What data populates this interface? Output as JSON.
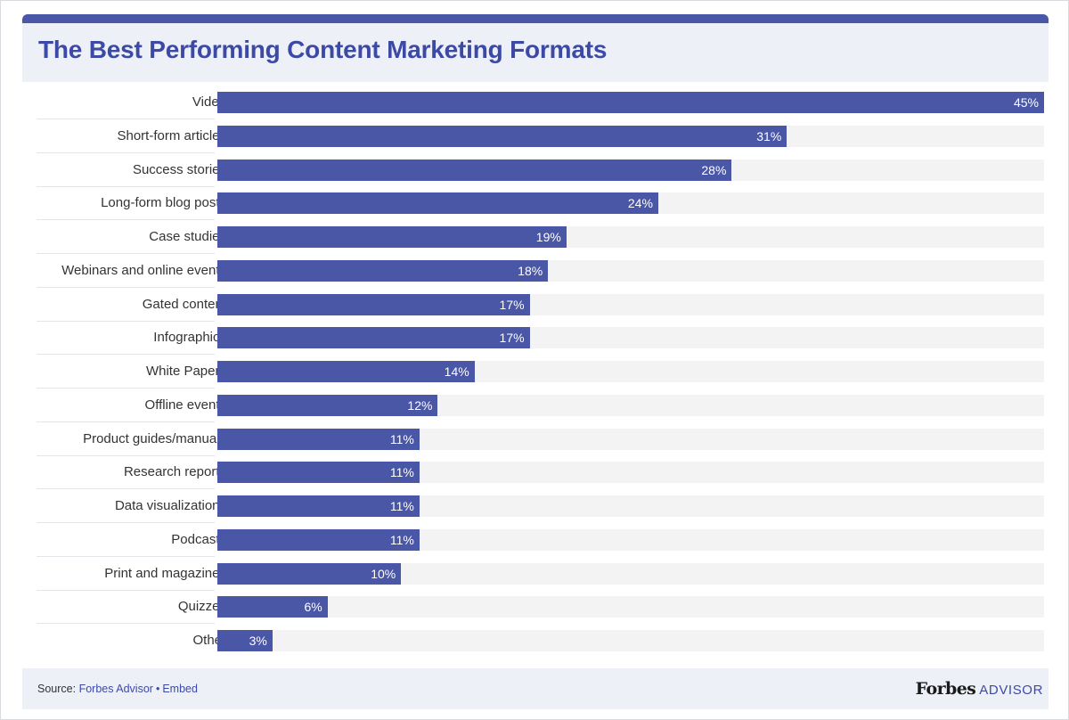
{
  "header": {
    "title": "The Best Performing Content Marketing Formats"
  },
  "chart_data": {
    "type": "bar",
    "orientation": "horizontal",
    "title": "The Best Performing Content Marketing Formats",
    "value_suffix": "%",
    "xlim": [
      0,
      45
    ],
    "categories": [
      "Video",
      "Short-form articles",
      "Success stories",
      "Long-form blog posts",
      "Case studies",
      "Webinars and online events",
      "Gated content",
      "Infographics",
      "White Papers",
      "Offline events",
      "Product guides/manuals",
      "Research reports",
      "Data visualizations",
      "Podcasts",
      "Print and magazines",
      "Quizzes",
      "Other"
    ],
    "values": [
      45,
      31,
      28,
      24,
      19,
      18,
      17,
      17,
      14,
      12,
      11,
      11,
      11,
      11,
      10,
      6,
      3
    ],
    "bar_color": "#4a56a6",
    "track_color": "#f3f3f3"
  },
  "footer": {
    "source_prefix": "Source:",
    "source_link": "Forbes Advisor",
    "separator": "•",
    "embed_link": "Embed",
    "brand_logo": "Forbes",
    "brand_sub": "ADVISOR"
  },
  "colors": {
    "accent": "#4a56a6",
    "title": "#3c4aa6",
    "panel": "#eef0f7"
  }
}
